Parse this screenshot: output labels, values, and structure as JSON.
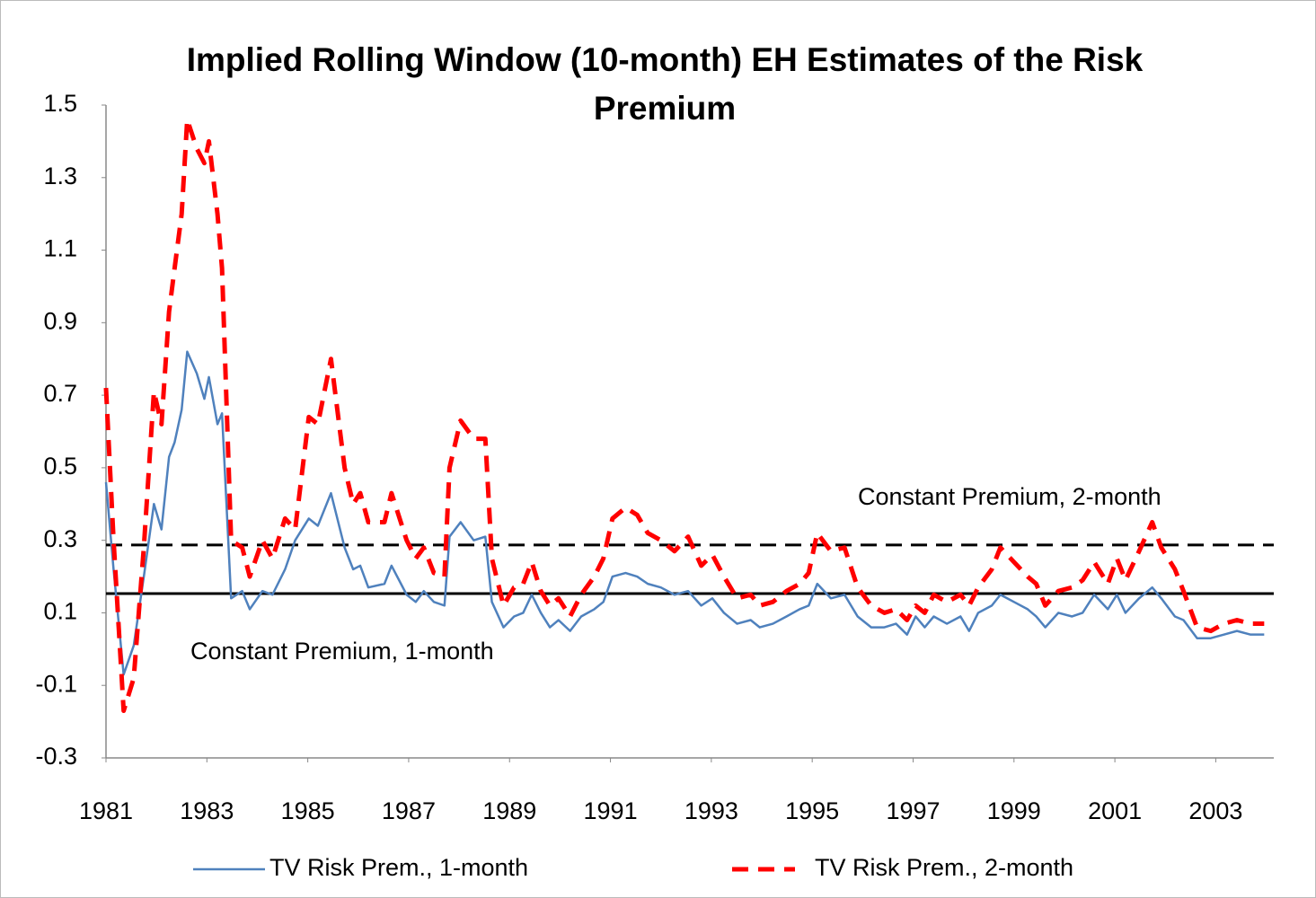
{
  "chart_data": {
    "type": "line",
    "title": "Implied Rolling Window (10-month) EH Estimates of the Risk Premium",
    "x": [
      1981.0,
      1981.15,
      1981.35,
      1981.55,
      1981.75,
      1981.95,
      1982.1,
      1982.25,
      1982.36,
      1982.5,
      1982.61,
      1982.8,
      1982.95,
      1983.04,
      1983.21,
      1983.3,
      1983.48,
      1983.7,
      1983.85,
      1984.1,
      1984.3,
      1984.55,
      1984.75,
      1985.02,
      1985.2,
      1985.46,
      1985.73,
      1985.9,
      1986.04,
      1986.2,
      1986.52,
      1986.66,
      1986.96,
      1987.14,
      1987.3,
      1987.5,
      1987.71,
      1987.81,
      1988.03,
      1988.29,
      1988.52,
      1988.65,
      1988.88,
      1989.09,
      1989.27,
      1989.44,
      1989.62,
      1989.8,
      1989.97,
      1990.2,
      1990.42,
      1990.68,
      1990.86,
      1991.04,
      1991.3,
      1991.53,
      1991.74,
      1992.0,
      1992.27,
      1992.54,
      1992.8,
      1993.02,
      1993.25,
      1993.51,
      1993.78,
      1993.96,
      1994.22,
      1994.49,
      1994.75,
      1994.93,
      1995.1,
      1995.37,
      1995.64,
      1995.9,
      1996.17,
      1996.43,
      1996.66,
      1996.88,
      1997.05,
      1997.23,
      1997.41,
      1997.67,
      1997.94,
      1998.11,
      1998.29,
      1998.56,
      1998.73,
      1999.0,
      1999.27,
      1999.44,
      1999.62,
      1999.88,
      2000.15,
      2000.36,
      2000.59,
      2000.86,
      2001.04,
      2001.21,
      2001.48,
      2001.74,
      2001.92,
      2002.19,
      2002.36,
      2002.63,
      2002.9,
      2003.16,
      2003.42,
      2003.69,
      2003.96
    ],
    "series": [
      {
        "name": "TV Risk Prem., 1-month",
        "color": "#4f81bd",
        "dashed": false,
        "values": [
          0.46,
          0.22,
          -0.07,
          0.01,
          0.2,
          0.4,
          0.33,
          0.53,
          0.57,
          0.66,
          0.82,
          0.76,
          0.69,
          0.75,
          0.62,
          0.65,
          0.14,
          0.16,
          0.11,
          0.16,
          0.15,
          0.22,
          0.3,
          0.36,
          0.34,
          0.43,
          0.28,
          0.22,
          0.23,
          0.17,
          0.18,
          0.23,
          0.15,
          0.13,
          0.16,
          0.13,
          0.12,
          0.31,
          0.35,
          0.3,
          0.31,
          0.13,
          0.06,
          0.09,
          0.1,
          0.15,
          0.1,
          0.06,
          0.08,
          0.05,
          0.09,
          0.11,
          0.13,
          0.2,
          0.21,
          0.2,
          0.18,
          0.17,
          0.15,
          0.16,
          0.12,
          0.14,
          0.1,
          0.07,
          0.08,
          0.06,
          0.07,
          0.09,
          0.11,
          0.12,
          0.18,
          0.14,
          0.15,
          0.09,
          0.06,
          0.06,
          0.07,
          0.04,
          0.09,
          0.06,
          0.09,
          0.07,
          0.09,
          0.05,
          0.1,
          0.12,
          0.15,
          0.13,
          0.11,
          0.09,
          0.06,
          0.1,
          0.09,
          0.1,
          0.15,
          0.11,
          0.15,
          0.1,
          0.14,
          0.17,
          0.14,
          0.09,
          0.08,
          0.03,
          0.03,
          0.04,
          0.05,
          0.04,
          0.04
        ]
      },
      {
        "name": "TV Risk Prem., 2-month",
        "color": "#ff0000",
        "dashed": true,
        "values": [
          0.72,
          0.3,
          -0.17,
          -0.08,
          0.28,
          0.71,
          0.62,
          0.93,
          1.05,
          1.2,
          1.46,
          1.38,
          1.34,
          1.4,
          1.2,
          1.05,
          0.3,
          0.28,
          0.2,
          0.3,
          0.25,
          0.36,
          0.33,
          0.64,
          0.62,
          0.8,
          0.5,
          0.4,
          0.43,
          0.35,
          0.35,
          0.43,
          0.3,
          0.25,
          0.28,
          0.21,
          0.2,
          0.5,
          0.63,
          0.58,
          0.58,
          0.25,
          0.12,
          0.17,
          0.18,
          0.24,
          0.16,
          0.12,
          0.14,
          0.09,
          0.15,
          0.2,
          0.25,
          0.36,
          0.39,
          0.37,
          0.32,
          0.3,
          0.27,
          0.31,
          0.23,
          0.26,
          0.2,
          0.14,
          0.15,
          0.12,
          0.13,
          0.16,
          0.18,
          0.21,
          0.32,
          0.27,
          0.28,
          0.17,
          0.12,
          0.1,
          0.11,
          0.08,
          0.12,
          0.1,
          0.15,
          0.13,
          0.15,
          0.12,
          0.17,
          0.22,
          0.28,
          0.24,
          0.2,
          0.18,
          0.12,
          0.16,
          0.17,
          0.19,
          0.24,
          0.18,
          0.25,
          0.19,
          0.27,
          0.35,
          0.28,
          0.22,
          0.16,
          0.06,
          0.05,
          0.07,
          0.08,
          0.07,
          0.07
        ]
      }
    ],
    "reference_lines": [
      {
        "name": "Constant Premium, 1-month",
        "value": 0.153,
        "color": "#000000",
        "dashed": false
      },
      {
        "name": "Constant Premium, 2-month",
        "value": 0.287,
        "color": "#000000",
        "dashed": true
      }
    ],
    "xlim": [
      1981,
      2004.15
    ],
    "xticks": [
      1981,
      1983,
      1985,
      1987,
      1989,
      1991,
      1993,
      1995,
      1997,
      1999,
      2001,
      2003
    ],
    "ylim": [
      -0.3,
      1.5
    ],
    "yticks": [
      -0.3,
      -0.1,
      0.1,
      0.3,
      0.5,
      0.7,
      0.9,
      1.1,
      1.3,
      1.5
    ],
    "grid": false
  }
}
